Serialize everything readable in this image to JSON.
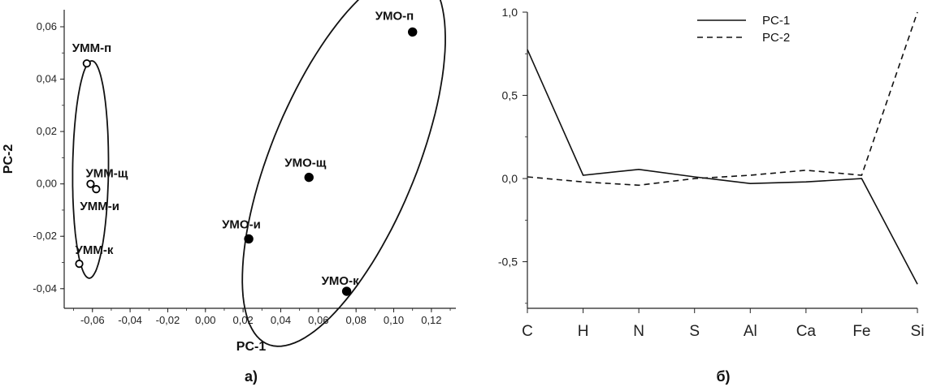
{
  "chart_data": [
    {
      "type": "scatter",
      "panel_label": "а)",
      "xlabel": "PC-1",
      "ylabel": "PC-2",
      "xlim": [
        -0.075,
        0.133
      ],
      "ylim": [
        -0.0475,
        0.0665
      ],
      "xticks": [
        -0.06,
        -0.04,
        -0.02,
        0.0,
        0.02,
        0.04,
        0.06,
        0.08,
        0.1,
        0.12
      ],
      "xtick_labels": [
        "-0,06",
        "-0,04",
        "-0,02",
        "0,00",
        "0,02",
        "0,04",
        "0,06",
        "0,08",
        "0,10",
        "0,12"
      ],
      "yticks": [
        -0.04,
        -0.02,
        0.0,
        0.02,
        0.04,
        0.06
      ],
      "ytick_labels": [
        "-0,04",
        "-0,02",
        "0,00",
        "0,02",
        "0,04",
        "0,06"
      ],
      "groups": [
        {
          "marker": "open-circle",
          "points": [
            {
              "label": "УММ-п",
              "x": -0.063,
              "y": 0.046
            },
            {
              "label": "УММ-щ",
              "x": -0.061,
              "y": 0.0
            },
            {
              "label": "УММ-и",
              "x": -0.058,
              "y": -0.002
            },
            {
              "label": "УММ-к",
              "x": -0.067,
              "y": -0.0305
            }
          ],
          "ellipse": {
            "cx": -0.061,
            "cy": 0.0055,
            "rx": 0.0095,
            "ry": 0.0415,
            "angle_deg": -1
          }
        },
        {
          "marker": "filled-circle",
          "points": [
            {
              "label": "УМО-п",
              "x": 0.11,
              "y": 0.058
            },
            {
              "label": "УМО-щ",
              "x": 0.055,
              "y": 0.0025
            },
            {
              "label": "УМО-и",
              "x": 0.023,
              "y": -0.021
            },
            {
              "label": "УМО-к",
              "x": 0.075,
              "y": -0.041
            }
          ],
          "ellipse": {
            "cx": 0.0735,
            "cy": 0.0095,
            "rx": 0.082,
            "ry": 0.036,
            "angle_deg": 57
          }
        }
      ]
    },
    {
      "type": "line",
      "panel_label": "б)",
      "categories": [
        "C",
        "H",
        "N",
        "S",
        "Al",
        "Ca",
        "Fe",
        "Si"
      ],
      "ylim": [
        -0.78,
        1.0
      ],
      "yticks": [
        -0.5,
        0.0,
        0.5,
        1.0
      ],
      "ytick_labels": [
        "-0,5",
        "0,0",
        "0,5",
        "1,0"
      ],
      "legend_position": "top-center",
      "series": [
        {
          "name": "PC-1",
          "style": "solid",
          "values": [
            0.775,
            0.02,
            0.055,
            0.01,
            -0.03,
            -0.02,
            0.0,
            -0.635
          ]
        },
        {
          "name": "PC-2",
          "style": "dashed",
          "values": [
            0.01,
            -0.02,
            -0.04,
            0.0,
            0.02,
            0.05,
            0.02,
            1.0
          ]
        }
      ]
    }
  ]
}
